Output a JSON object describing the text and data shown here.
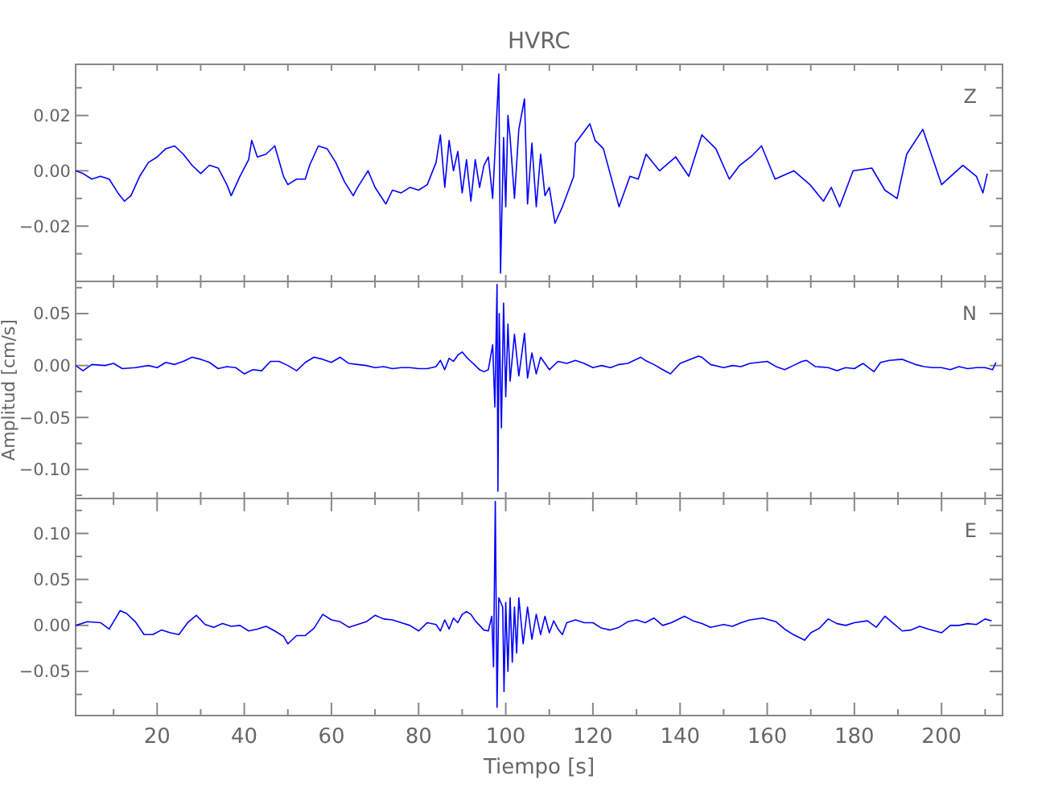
{
  "chart_data": [
    {
      "type": "line",
      "title": "HVRC",
      "tick_labels": "y",
      "grid": false,
      "line_style": "solid",
      "xlim": [
        1.3,
        214
      ],
      "xticks": [
        {
          "value": 10,
          "label": null
        },
        {
          "value": 20,
          "label": null
        },
        {
          "value": 30,
          "label": null
        },
        {
          "value": 40,
          "label": null
        },
        {
          "value": 50,
          "label": null
        },
        {
          "value": 60,
          "label": null
        },
        {
          "value": 70,
          "label": null
        },
        {
          "value": 80,
          "label": null
        },
        {
          "value": 90,
          "label": null
        },
        {
          "value": 100,
          "label": null
        },
        {
          "value": 110,
          "label": null
        },
        {
          "value": 120,
          "label": null
        },
        {
          "value": 130,
          "label": null
        },
        {
          "value": 140,
          "label": null
        },
        {
          "value": 150,
          "label": null
        },
        {
          "value": 160,
          "label": null
        },
        {
          "value": 170,
          "label": null
        },
        {
          "value": 180,
          "label": null
        },
        {
          "value": 190,
          "label": null
        },
        {
          "value": 200,
          "label": null
        },
        {
          "value": 210,
          "label": null
        }
      ],
      "ylim": [
        -0.04,
        0.0385
      ],
      "yticks": [
        {
          "value": -0.03,
          "label": null
        },
        {
          "value": -0.02,
          "label": "−0.02"
        },
        {
          "value": -0.01,
          "label": null
        },
        {
          "value": 0,
          "label": "0.00"
        },
        {
          "value": 0.01,
          "label": null
        },
        {
          "value": 0.02,
          "label": "0.02"
        },
        {
          "value": 0.03,
          "label": null
        }
      ],
      "series": [
        {
          "name": "Z",
          "color": "#0000ff",
          "x": [
            1.3,
            3,
            5,
            7,
            9,
            11,
            12.5,
            14,
            16,
            18,
            20,
            22,
            24,
            26,
            28,
            30,
            32,
            34,
            36,
            37,
            39,
            41,
            41.7,
            43,
            45,
            47,
            49,
            50,
            52,
            54,
            55,
            57,
            59,
            61,
            63,
            65,
            66,
            68.4,
            70,
            72.5,
            74,
            76,
            78,
            80,
            82,
            84,
            85,
            86,
            87,
            88,
            89,
            90,
            91,
            92,
            93,
            94,
            95,
            96,
            97,
            98.4,
            98.8,
            99.5,
            100,
            100.5,
            101,
            102,
            103,
            104.3,
            105,
            106,
            107,
            108,
            109,
            110,
            111.3,
            113,
            115.6,
            116,
            119.3,
            120.5,
            122.4,
            126,
            128.5,
            130.4,
            132.2,
            135.3,
            139,
            142,
            145,
            148.2,
            151.3,
            153.7,
            156.2,
            158.7,
            161.8,
            166.1,
            169.8,
            172.9,
            174.7,
            176.6,
            179.7,
            184,
            187,
            189.8,
            192,
            195.7,
            200,
            204.9,
            208,
            209.5,
            210.5
          ],
          "values": [
            0,
            -0.001,
            -0.003,
            -0.002,
            -0.003,
            -0.008,
            -0.011,
            -0.009,
            -0.002,
            0.003,
            0.005,
            0.008,
            0.009,
            0.006,
            0.002,
            -0.001,
            0.002,
            0.001,
            -0.005,
            -0.009,
            -0.002,
            0.004,
            0.011,
            0.005,
            0.006,
            0.009,
            -0.002,
            -0.005,
            -0.003,
            -0.003,
            0.002,
            0.009,
            0.008,
            0.003,
            -0.004,
            -0.009,
            -0.006,
            0,
            -0.006,
            -0.012,
            -0.007,
            -0.008,
            -0.006,
            -0.007,
            -0.005,
            0.003,
            0.013,
            -0.006,
            0.011,
            0,
            0.007,
            -0.008,
            0.004,
            -0.011,
            0.004,
            -0.006,
            0.002,
            0.005,
            -0.01,
            0.035,
            -0.037,
            0.012,
            -0.013,
            0.02,
            0.012,
            -0.01,
            0.015,
            0.026,
            -0.012,
            0.01,
            -0.013,
            0.006,
            -0.009,
            -0.006,
            -0.019,
            -0.013,
            -0.002,
            0.01,
            0.017,
            0.011,
            0.008,
            -0.013,
            -0.002,
            -0.003,
            0.006,
            0,
            0.005,
            -0.002,
            0.013,
            0.008,
            -0.003,
            0.002,
            0.005,
            0.009,
            -0.003,
            0,
            -0.005,
            -0.011,
            -0.006,
            -0.013,
            0,
            0.001,
            -0.007,
            -0.01,
            0.006,
            0.015,
            -0.005,
            0.002,
            -0.002,
            -0.008,
            -0.001
          ]
        }
      ]
    },
    {
      "type": "line",
      "ylabel": "Amplitud [cm/s]",
      "tick_labels": "y",
      "grid": false,
      "line_style": "solid",
      "xlim": [
        1.3,
        214
      ],
      "xticks": [
        {
          "value": 10,
          "label": null
        },
        {
          "value": 20,
          "label": null
        },
        {
          "value": 30,
          "label": null
        },
        {
          "value": 40,
          "label": null
        },
        {
          "value": 50,
          "label": null
        },
        {
          "value": 60,
          "label": null
        },
        {
          "value": 70,
          "label": null
        },
        {
          "value": 80,
          "label": null
        },
        {
          "value": 90,
          "label": null
        },
        {
          "value": 100,
          "label": null
        },
        {
          "value": 110,
          "label": null
        },
        {
          "value": 120,
          "label": null
        },
        {
          "value": 130,
          "label": null
        },
        {
          "value": 140,
          "label": null
        },
        {
          "value": 150,
          "label": null
        },
        {
          "value": 160,
          "label": null
        },
        {
          "value": 170,
          "label": null
        },
        {
          "value": 180,
          "label": null
        },
        {
          "value": 190,
          "label": null
        },
        {
          "value": 200,
          "label": null
        },
        {
          "value": 210,
          "label": null
        }
      ],
      "ylim": [
        -0.128,
        0.081
      ],
      "yticks": [
        {
          "value": -0.125,
          "label": null
        },
        {
          "value": -0.1,
          "label": "−0.10"
        },
        {
          "value": -0.075,
          "label": null
        },
        {
          "value": -0.05,
          "label": "−0.05"
        },
        {
          "value": -0.025,
          "label": null
        },
        {
          "value": 0,
          "label": "0.00"
        },
        {
          "value": 0.025,
          "label": null
        },
        {
          "value": 0.05,
          "label": "0.05"
        },
        {
          "value": 0.075,
          "label": null
        }
      ],
      "series": [
        {
          "name": "N",
          "color": "#0000ff",
          "x": [
            1.3,
            3,
            5,
            8,
            10,
            12,
            15,
            18,
            20,
            22,
            24,
            26,
            28,
            30,
            32,
            34,
            36,
            38,
            40,
            42,
            44,
            46,
            48,
            50,
            52,
            54,
            56,
            58,
            60,
            62,
            64,
            66,
            68,
            70,
            72,
            74,
            76,
            78,
            80,
            82,
            84,
            85,
            86,
            87,
            88,
            89,
            90,
            91,
            92,
            93,
            94,
            95,
            96,
            97,
            97.5,
            98,
            98.2,
            98.5,
            99,
            99.5,
            100,
            100.5,
            101,
            102,
            103,
            104.3,
            105,
            106,
            107,
            108,
            110,
            112,
            114,
            116,
            118,
            120,
            122,
            124,
            126,
            128,
            131,
            132,
            134,
            136,
            137.8,
            140,
            144.2,
            145,
            147,
            150,
            152,
            154,
            156,
            158,
            160,
            162,
            164,
            166,
            168,
            169,
            171,
            174,
            176,
            178,
            180,
            182,
            184.5,
            186,
            188,
            191,
            194,
            196,
            198,
            200,
            202,
            204,
            206,
            208,
            210,
            211.7,
            212.5
          ],
          "values": [
            0,
            -0.005,
            0.001,
            0,
            0.002,
            -0.003,
            -0.002,
            0,
            -0.002,
            0.003,
            0.001,
            0.004,
            0.008,
            0.006,
            0.003,
            -0.003,
            -0.001,
            -0.002,
            -0.008,
            -0.004,
            -0.005,
            0.004,
            0.004,
            0,
            -0.005,
            0.003,
            0.008,
            0.006,
            0.003,
            0.008,
            0.002,
            0.001,
            0,
            -0.002,
            -0.001,
            -0.003,
            -0.002,
            -0.002,
            -0.003,
            -0.003,
            -0.001,
            0.005,
            -0.004,
            0.007,
            0.004,
            0.01,
            0.013,
            0.008,
            0.004,
            0,
            -0.004,
            -0.006,
            -0.004,
            0.02,
            -0.04,
            0.078,
            -0.121,
            0.05,
            -0.06,
            0.06,
            -0.03,
            0.04,
            -0.015,
            0.03,
            -0.01,
            0.031,
            -0.012,
            0.012,
            -0.008,
            0.008,
            -0.004,
            0.004,
            0.002,
            0.005,
            0.002,
            -0.002,
            0,
            -0.002,
            0.001,
            0.002,
            0.008,
            0.005,
            0.001,
            -0.004,
            -0.008,
            0.002,
            0.009,
            0.008,
            0.001,
            -0.002,
            0,
            -0.001,
            0.002,
            0.003,
            0.004,
            -0.001,
            -0.004,
            0,
            0.004,
            0.005,
            -0.001,
            -0.002,
            -0.005,
            -0.002,
            -0.003,
            0.002,
            -0.006,
            0.003,
            0.005,
            0.006,
            0.001,
            -0.001,
            -0.002,
            -0.002,
            -0.004,
            -0.001,
            -0.003,
            -0.002,
            -0.002,
            -0.004,
            0.003
          ]
        }
      ]
    },
    {
      "type": "line",
      "xlabel": "Tiempo [s]",
      "grid": false,
      "line_style": "solid",
      "xlim": [
        1.3,
        214
      ],
      "xticks": [
        {
          "value": 10,
          "label": null
        },
        {
          "value": 20,
          "label": "20"
        },
        {
          "value": 30,
          "label": null
        },
        {
          "value": 40,
          "label": "40"
        },
        {
          "value": 50,
          "label": null
        },
        {
          "value": 60,
          "label": "60"
        },
        {
          "value": 70,
          "label": null
        },
        {
          "value": 80,
          "label": "80"
        },
        {
          "value": 90,
          "label": null
        },
        {
          "value": 100,
          "label": "100"
        },
        {
          "value": 110,
          "label": null
        },
        {
          "value": 120,
          "label": "120"
        },
        {
          "value": 130,
          "label": null
        },
        {
          "value": 140,
          "label": "140"
        },
        {
          "value": 150,
          "label": null
        },
        {
          "value": 160,
          "label": "160"
        },
        {
          "value": 170,
          "label": null
        },
        {
          "value": 180,
          "label": "180"
        },
        {
          "value": 190,
          "label": null
        },
        {
          "value": 200,
          "label": "200"
        },
        {
          "value": 210,
          "label": null
        }
      ],
      "ylim": [
        -0.098,
        0.138
      ],
      "yticks": [
        {
          "value": -0.075,
          "label": null
        },
        {
          "value": -0.05,
          "label": "−0.05"
        },
        {
          "value": -0.025,
          "label": null
        },
        {
          "value": 0,
          "label": "0.00"
        },
        {
          "value": 0.025,
          "label": null
        },
        {
          "value": 0.05,
          "label": "0.05"
        },
        {
          "value": 0.075,
          "label": null
        },
        {
          "value": 0.1,
          "label": "0.10"
        },
        {
          "value": 0.125,
          "label": null
        }
      ],
      "series": [
        {
          "name": "E",
          "color": "#0000ff",
          "x": [
            1.3,
            4,
            7,
            9,
            11.5,
            13,
            15,
            17,
            19,
            21,
            23,
            25,
            27,
            29,
            31,
            33,
            35,
            37,
            39,
            41,
            43,
            45,
            47,
            49,
            50,
            52,
            54,
            56,
            58,
            60,
            62,
            64,
            66,
            68,
            70,
            72,
            74,
            76,
            78,
            80,
            82,
            84,
            85,
            86,
            87,
            88,
            89,
            90,
            91,
            92,
            93,
            94,
            95,
            96,
            96.8,
            97.2,
            97.6,
            98,
            98.4,
            99.3,
            99.6,
            100,
            100.5,
            101,
            101.5,
            102,
            102.5,
            103,
            104,
            105,
            106,
            107,
            108,
            109,
            110,
            111,
            112,
            113,
            114,
            116,
            118,
            120,
            122,
            124,
            126,
            128,
            130,
            132,
            134,
            136,
            138,
            141,
            143,
            145,
            147,
            150,
            152,
            154,
            156,
            159,
            162,
            164,
            166,
            168.6,
            170,
            172,
            174,
            176,
            178,
            180,
            183,
            185,
            187,
            189,
            191,
            193,
            195,
            197,
            200,
            202,
            204,
            206,
            208,
            210,
            211.5
          ],
          "values": [
            0,
            0.004,
            0.003,
            -0.004,
            0.016,
            0.013,
            0.004,
            -0.01,
            -0.01,
            -0.005,
            -0.008,
            -0.01,
            0.003,
            0.011,
            0.001,
            -0.002,
            0.002,
            -0.001,
            0,
            -0.006,
            -0.004,
            -0.001,
            -0.006,
            -0.012,
            -0.02,
            -0.011,
            -0.011,
            -0.003,
            0.012,
            0.006,
            0.004,
            -0.002,
            0.001,
            0.004,
            0.011,
            0.007,
            0.006,
            0.003,
            0,
            -0.006,
            0.003,
            0.001,
            -0.006,
            0.006,
            -0.004,
            0.008,
            0.003,
            0.012,
            0.015,
            0.012,
            0.005,
            0,
            -0.005,
            -0.006,
            0.01,
            -0.045,
            0.135,
            -0.089,
            0.03,
            0.02,
            -0.072,
            0.025,
            -0.05,
            0.03,
            -0.04,
            0.02,
            -0.03,
            0.03,
            -0.02,
            0.02,
            -0.015,
            0.012,
            -0.01,
            0.01,
            -0.008,
            0.005,
            -0.004,
            -0.01,
            0.003,
            0.006,
            0.003,
            0.003,
            -0.003,
            -0.005,
            -0.002,
            0.004,
            0.006,
            0.003,
            0.008,
            0,
            0.003,
            0.01,
            0.005,
            0.002,
            -0.002,
            0.001,
            -0.001,
            0.003,
            0.006,
            0.008,
            0.004,
            -0.004,
            -0.01,
            -0.016,
            -0.008,
            -0.003,
            0.007,
            0.002,
            0,
            0.003,
            0.005,
            -0.002,
            0.01,
            0.002,
            -0.006,
            -0.005,
            -0.001,
            -0.004,
            -0.008,
            0,
            0,
            0.002,
            0.001,
            0.007,
            0.005
          ]
        }
      ]
    }
  ]
}
